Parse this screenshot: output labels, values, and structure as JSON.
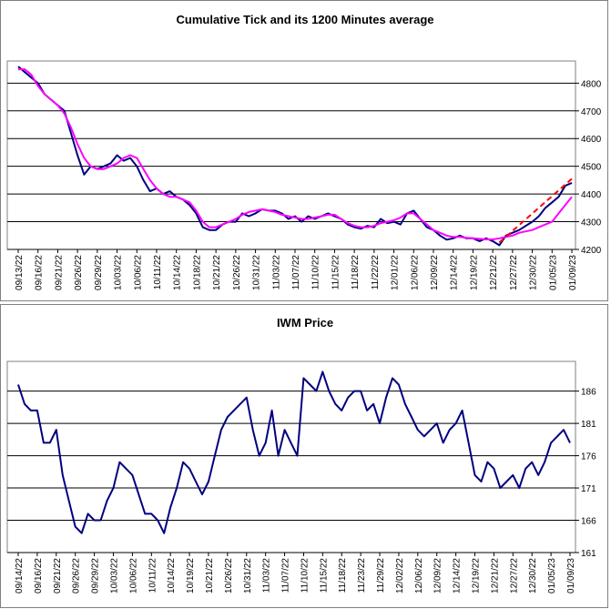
{
  "chart_data": [
    {
      "type": "line",
      "title": "Cumulative Tick and its 1200 Minutes average",
      "categories": [
        "09/13/22",
        null,
        null,
        "09/16/22",
        null,
        null,
        "09/21/22",
        null,
        null,
        "09/26/22",
        null,
        null,
        "09/29/22",
        null,
        null,
        "10/03/22",
        null,
        null,
        "10/06/22",
        null,
        null,
        "10/11/22",
        null,
        null,
        "10/14/22",
        null,
        null,
        "10/18/22",
        null,
        null,
        "10/21/22",
        null,
        null,
        "10/26/22",
        null,
        null,
        "10/31/22",
        null,
        null,
        "11/03/22",
        null,
        null,
        "11/07/22",
        null,
        null,
        "11/10/22",
        null,
        null,
        "11/15/22",
        null,
        null,
        "11/18/22",
        null,
        null,
        "11/22/22",
        null,
        null,
        "12/01/22",
        null,
        null,
        "12/06/22",
        null,
        null,
        "12/09/22",
        null,
        null,
        "12/14/22",
        null,
        null,
        "12/19/22",
        null,
        null,
        "12/21/22",
        null,
        null,
        "12/27/22",
        null,
        null,
        "12/30/22",
        null,
        null,
        "01/05/23",
        null,
        null,
        "01/09/23"
      ],
      "series": [
        {
          "color": "#000080",
          "values": [
            4860,
            4840,
            4820,
            4800,
            4760,
            4740,
            4720,
            4700,
            4620,
            4540,
            4470,
            4500,
            4490,
            4500,
            4510,
            4540,
            4520,
            4530,
            4500,
            4450,
            4410,
            4420,
            4400,
            4410,
            4390,
            4380,
            4360,
            4330,
            4280,
            4270,
            4270,
            4290,
            4300,
            4300,
            4330,
            4320,
            4330,
            4345,
            4340,
            4340,
            4330,
            4310,
            4320,
            4300,
            4320,
            4310,
            4320,
            4330,
            4320,
            4310,
            4290,
            4280,
            4275,
            4285,
            4280,
            4310,
            4295,
            4300,
            4290,
            4330,
            4340,
            4310,
            4280,
            4270,
            4250,
            4235,
            4240,
            4250,
            4240,
            4240,
            4230,
            4240,
            4230,
            4215,
            4250,
            4260,
            4270,
            4285,
            4300,
            4320,
            4350,
            4370,
            4390,
            4430,
            4440
          ]
        },
        {
          "color": "#ff00ff",
          "values": [
            4850,
            4850,
            4830,
            4790,
            4760,
            4740,
            4720,
            4690,
            4640,
            4580,
            4530,
            4500,
            4490,
            4490,
            4500,
            4510,
            4530,
            4540,
            4530,
            4490,
            4450,
            4420,
            4400,
            4390,
            4390,
            4380,
            4370,
            4340,
            4300,
            4280,
            4280,
            4290,
            4300,
            4310,
            4325,
            4335,
            4340,
            4345,
            4340,
            4335,
            4325,
            4320,
            4315,
            4310,
            4310,
            4315,
            4320,
            4325,
            4325,
            4310,
            4295,
            4285,
            4280,
            4280,
            4285,
            4295,
            4300,
            4305,
            4315,
            4330,
            4330,
            4310,
            4290,
            4270,
            4260,
            4250,
            4245,
            4245,
            4242,
            4240,
            4238,
            4236,
            4236,
            4240,
            4245,
            4250,
            4260,
            4265,
            4270,
            4280,
            4290,
            4300,
            4330,
            4360,
            4390
          ]
        }
      ],
      "trend_line": {
        "color": "#ff0000",
        "x": [
          73,
          84
        ],
        "values": [
          4225,
          4455
        ]
      },
      "ylim": [
        4200,
        4880
      ],
      "yticks": [
        4200,
        4300,
        4400,
        4500,
        4600,
        4700,
        4800
      ],
      "grid": true
    },
    {
      "type": "line",
      "title": "IWM Price",
      "categories": [
        "09/14/22",
        null,
        null,
        "09/16/22",
        null,
        null,
        "09/21/22",
        null,
        null,
        "09/26/22",
        null,
        null,
        "09/29/22",
        null,
        null,
        "10/03/22",
        null,
        null,
        "10/06/22",
        null,
        null,
        "10/11/22",
        null,
        null,
        "10/14/22",
        null,
        null,
        "10/19/22",
        null,
        null,
        "10/21/22",
        null,
        null,
        "10/26/22",
        null,
        null,
        "10/31/22",
        null,
        null,
        "11/03/22",
        null,
        null,
        "11/07/22",
        null,
        null,
        "11/10/22",
        null,
        null,
        "11/15/22",
        null,
        null,
        "11/18/22",
        null,
        null,
        "11/23/22",
        null,
        null,
        "11/29/22",
        null,
        null,
        "12/02/22",
        null,
        null,
        "12/06/22",
        null,
        null,
        "12/09/22",
        null,
        null,
        "12/14/22",
        null,
        null,
        "12/19/22",
        null,
        null,
        "12/21/22",
        null,
        null,
        "12/27/22",
        null,
        null,
        "12/30/22",
        null,
        null,
        "01/05/23",
        null,
        null,
        "01/09/23"
      ],
      "series": [
        {
          "color": "#000080",
          "values": [
            187,
            184,
            183,
            183,
            178,
            178,
            180,
            173,
            169,
            165,
            164,
            167,
            166,
            166,
            169,
            171,
            175,
            174,
            173,
            170,
            167,
            167,
            166,
            164,
            168,
            171,
            175,
            174,
            172,
            170,
            172,
            176,
            180,
            182,
            183,
            184,
            185,
            180,
            176,
            178,
            183,
            176,
            180,
            178,
            176,
            188,
            187,
            186,
            189,
            186,
            184,
            183,
            185,
            186,
            186,
            183,
            184,
            181,
            185,
            188,
            187,
            184,
            182,
            180,
            179,
            180,
            181,
            178,
            180,
            181,
            183,
            178,
            173,
            172,
            175,
            174,
            171,
            172,
            173,
            171,
            174,
            175,
            173,
            175,
            178,
            179,
            180,
            178
          ]
        }
      ],
      "ylim": [
        161,
        190.6
      ],
      "yticks": [
        161,
        166,
        171,
        176,
        181,
        186
      ],
      "grid": true
    }
  ]
}
